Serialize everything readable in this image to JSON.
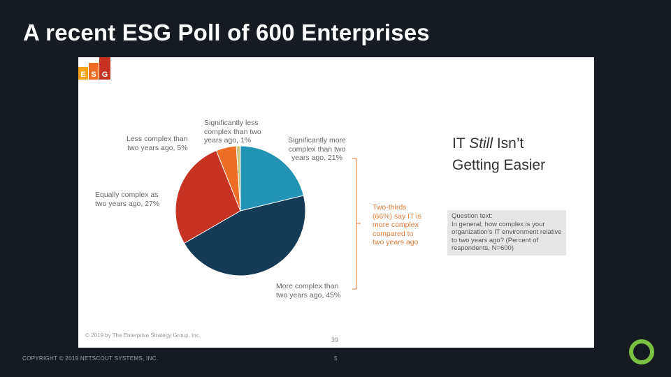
{
  "slide": {
    "title": "A recent ESG Poll of 600 Enterprises",
    "copyright": "COPYRIGHT © 2019 NETSCOUT SYSTEMS, INC.",
    "page_number": "5"
  },
  "figure": {
    "headline_part1": "IT",
    "headline_italic": "Still",
    "headline_part2": "Isn’t",
    "headline_line2": "Getting Easier",
    "question_lines": [
      "Question text:",
      "In general, how complex is your",
      "organization’s IT environment relative",
      "to two years ago? (Percent of",
      "respondents, N=600)"
    ],
    "callout_lines": [
      "Two-thirds",
      "(66%) say IT is",
      "more complex",
      "compared to",
      "two years ago"
    ],
    "source_note": "© 2019 by The Enterprise Strategy Group, Inc.",
    "page_number": "39",
    "esg_logo": [
      "E",
      "S",
      "G"
    ]
  },
  "chart_data": {
    "type": "pie",
    "title": "",
    "categories": [
      "Significantly more complex than two years ago",
      "More complex than two years ago",
      "Equally complex as two years ago",
      "Less complex than two years ago",
      "Significantly less complex than two years ago"
    ],
    "values": [
      21,
      45,
      27,
      5,
      1
    ],
    "colors": [
      "#2293b5",
      "#153a55",
      "#c63322",
      "#ef6e26",
      "#d0c483"
    ],
    "labels": [
      [
        "Significantly more",
        "complex than two",
        "years ago, 21%"
      ],
      [
        "More complex than",
        "two years ago, 45%"
      ],
      [
        "Equally complex as",
        "two years ago, 27%"
      ],
      [
        "Less complex than",
        "two years ago, 5%"
      ],
      [
        "Significantly less",
        "complex than two",
        "years ago, 1%"
      ]
    ]
  },
  "colors": {
    "background": "#161b22",
    "accent_orange": "#e07a36",
    "logo_green": "#7ac142"
  }
}
